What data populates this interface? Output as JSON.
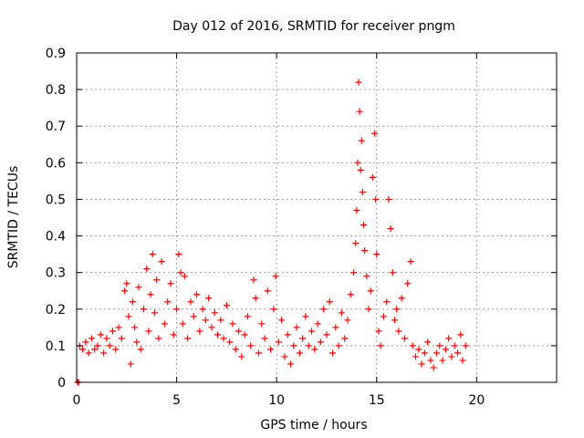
{
  "chart_data": {
    "type": "scatter",
    "title": "Day 012 of 2016, SRMTID for receiver pngm",
    "xlabel": "GPS time / hours",
    "ylabel": "SRMTID / TECUs",
    "xlim": [
      0,
      24
    ],
    "ylim": [
      0,
      0.9
    ],
    "x_ticks": [
      0,
      5,
      10,
      15,
      20
    ],
    "x_tick_labels": [
      "0",
      "5",
      "10",
      "15",
      "20"
    ],
    "y_ticks": [
      0,
      0.1,
      0.2,
      0.3,
      0.4,
      0.5,
      0.6,
      0.7,
      0.8,
      0.9
    ],
    "y_tick_labels": [
      "0",
      "0.1",
      "0.2",
      "0.3",
      "0.4",
      "0.5",
      "0.6",
      "0.7",
      "0.8",
      "0.9"
    ],
    "grid": true,
    "marker": "+",
    "color": "#ff0000",
    "series": [
      {
        "name": "SRMTID",
        "points": [
          [
            0.05,
            0.0
          ],
          [
            0.1,
            0.0
          ],
          [
            0.15,
            0.1
          ],
          [
            0.3,
            0.09
          ],
          [
            0.45,
            0.11
          ],
          [
            0.6,
            0.08
          ],
          [
            0.75,
            0.12
          ],
          [
            0.9,
            0.09
          ],
          [
            1.05,
            0.1
          ],
          [
            1.2,
            0.13
          ],
          [
            1.35,
            0.08
          ],
          [
            1.5,
            0.12
          ],
          [
            1.65,
            0.1
          ],
          [
            1.8,
            0.14
          ],
          [
            1.95,
            0.09
          ],
          [
            2.1,
            0.15
          ],
          [
            2.25,
            0.12
          ],
          [
            2.4,
            0.25
          ],
          [
            2.5,
            0.27
          ],
          [
            2.6,
            0.18
          ],
          [
            2.7,
            0.05
          ],
          [
            2.8,
            0.22
          ],
          [
            2.9,
            0.15
          ],
          [
            3.0,
            0.11
          ],
          [
            3.1,
            0.26
          ],
          [
            3.2,
            0.09
          ],
          [
            3.35,
            0.2
          ],
          [
            3.5,
            0.31
          ],
          [
            3.6,
            0.14
          ],
          [
            3.7,
            0.24
          ],
          [
            3.8,
            0.35
          ],
          [
            3.9,
            0.19
          ],
          [
            4.0,
            0.28
          ],
          [
            4.1,
            0.12
          ],
          [
            4.25,
            0.33
          ],
          [
            4.4,
            0.16
          ],
          [
            4.55,
            0.22
          ],
          [
            4.7,
            0.27
          ],
          [
            4.85,
            0.13
          ],
          [
            5.0,
            0.2
          ],
          [
            5.1,
            0.35
          ],
          [
            5.2,
            0.3
          ],
          [
            5.3,
            0.16
          ],
          [
            5.4,
            0.29
          ],
          [
            5.55,
            0.12
          ],
          [
            5.7,
            0.22
          ],
          [
            5.85,
            0.18
          ],
          [
            6.0,
            0.24
          ],
          [
            6.15,
            0.14
          ],
          [
            6.3,
            0.2
          ],
          [
            6.45,
            0.17
          ],
          [
            6.6,
            0.23
          ],
          [
            6.75,
            0.15
          ],
          [
            6.9,
            0.19
          ],
          [
            7.05,
            0.13
          ],
          [
            7.2,
            0.17
          ],
          [
            7.35,
            0.12
          ],
          [
            7.5,
            0.21
          ],
          [
            7.65,
            0.11
          ],
          [
            7.8,
            0.16
          ],
          [
            7.95,
            0.09
          ],
          [
            8.1,
            0.14
          ],
          [
            8.25,
            0.07
          ],
          [
            8.4,
            0.13
          ],
          [
            8.55,
            0.18
          ],
          [
            8.7,
            0.1
          ],
          [
            8.85,
            0.28
          ],
          [
            8.95,
            0.23
          ],
          [
            9.1,
            0.08
          ],
          [
            9.25,
            0.16
          ],
          [
            9.4,
            0.12
          ],
          [
            9.55,
            0.25
          ],
          [
            9.7,
            0.09
          ],
          [
            9.85,
            0.2
          ],
          [
            9.95,
            0.29
          ],
          [
            10.1,
            0.11
          ],
          [
            10.25,
            0.17
          ],
          [
            10.4,
            0.07
          ],
          [
            10.55,
            0.13
          ],
          [
            10.7,
            0.05
          ],
          [
            10.85,
            0.1
          ],
          [
            11.0,
            0.15
          ],
          [
            11.15,
            0.08
          ],
          [
            11.3,
            0.12
          ],
          [
            11.45,
            0.18
          ],
          [
            11.6,
            0.1
          ],
          [
            11.75,
            0.14
          ],
          [
            11.9,
            0.09
          ],
          [
            12.05,
            0.16
          ],
          [
            12.2,
            0.11
          ],
          [
            12.35,
            0.2
          ],
          [
            12.5,
            0.13
          ],
          [
            12.65,
            0.22
          ],
          [
            12.8,
            0.08
          ],
          [
            12.95,
            0.15
          ],
          [
            13.1,
            0.1
          ],
          [
            13.25,
            0.19
          ],
          [
            13.4,
            0.12
          ],
          [
            13.55,
            0.17
          ],
          [
            13.7,
            0.24
          ],
          [
            13.85,
            0.3
          ],
          [
            13.95,
            0.38
          ],
          [
            14.0,
            0.47
          ],
          [
            14.05,
            0.6
          ],
          [
            14.1,
            0.82
          ],
          [
            14.15,
            0.74
          ],
          [
            14.2,
            0.58
          ],
          [
            14.25,
            0.66
          ],
          [
            14.3,
            0.52
          ],
          [
            14.35,
            0.43
          ],
          [
            14.4,
            0.36
          ],
          [
            14.5,
            0.29
          ],
          [
            14.6,
            0.2
          ],
          [
            14.7,
            0.25
          ],
          [
            14.8,
            0.56
          ],
          [
            14.9,
            0.68
          ],
          [
            14.95,
            0.5
          ],
          [
            15.0,
            0.35
          ],
          [
            15.1,
            0.14
          ],
          [
            15.2,
            0.1
          ],
          [
            15.35,
            0.18
          ],
          [
            15.5,
            0.22
          ],
          [
            15.6,
            0.5
          ],
          [
            15.7,
            0.42
          ],
          [
            15.8,
            0.3
          ],
          [
            15.9,
            0.17
          ],
          [
            16.0,
            0.2
          ],
          [
            16.1,
            0.14
          ],
          [
            16.25,
            0.23
          ],
          [
            16.4,
            0.12
          ],
          [
            16.55,
            0.27
          ],
          [
            16.7,
            0.33
          ],
          [
            16.8,
            0.1
          ],
          [
            16.95,
            0.07
          ],
          [
            17.1,
            0.09
          ],
          [
            17.25,
            0.05
          ],
          [
            17.4,
            0.08
          ],
          [
            17.55,
            0.11
          ],
          [
            17.7,
            0.06
          ],
          [
            17.85,
            0.04
          ],
          [
            18.0,
            0.08
          ],
          [
            18.15,
            0.1
          ],
          [
            18.3,
            0.06
          ],
          [
            18.45,
            0.09
          ],
          [
            18.6,
            0.12
          ],
          [
            18.75,
            0.07
          ],
          [
            18.9,
            0.1
          ],
          [
            19.05,
            0.08
          ],
          [
            19.2,
            0.13
          ],
          [
            19.3,
            0.06
          ],
          [
            19.45,
            0.1
          ]
        ]
      }
    ]
  }
}
